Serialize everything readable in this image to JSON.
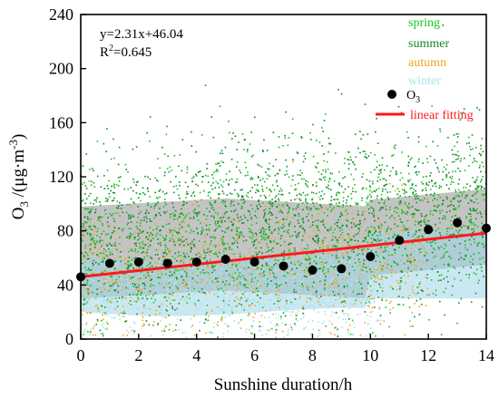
{
  "chart_data": {
    "type": "scatter",
    "title": "",
    "xlabel": "Sunshine duration/h",
    "ylabel_parts": {
      "main": "O",
      "sub": "3",
      "rest": " /(μg·m",
      "sup": "-3",
      "close": ")"
    },
    "xlim": [
      0,
      14
    ],
    "ylim": [
      0,
      240
    ],
    "x_ticks": [
      0,
      2,
      4,
      6,
      8,
      10,
      12,
      14
    ],
    "y_ticks": [
      0,
      40,
      80,
      120,
      160,
      200,
      240
    ],
    "grid": false,
    "legend": "top-right",
    "series": [
      {
        "name": "spring",
        "color": "#19c31f",
        "kind": "scatter"
      },
      {
        "name": "summer",
        "color": "#13882a",
        "kind": "scatter"
      },
      {
        "name": "autumn",
        "color": "#f0a526",
        "kind": "scatter"
      },
      {
        "name": "winter",
        "color": "#a7e2ef",
        "kind": "scatter"
      },
      {
        "name_main": "O",
        "name_sub": "3",
        "color": "#000000",
        "kind": "mean",
        "x": [
          0,
          1,
          2,
          3,
          4,
          5,
          6,
          7,
          8,
          9,
          10,
          11,
          12,
          13,
          14
        ],
        "y": [
          46,
          56,
          57,
          56,
          57,
          59,
          57,
          54,
          51,
          52,
          61,
          73,
          81,
          86,
          82
        ]
      },
      {
        "name": "linear fitting",
        "color": "#ff1a1a",
        "kind": "line",
        "slope": 2.31,
        "intercept": 46.04
      }
    ],
    "annotations": {
      "equation": "y=2.31x+46.04",
      "r2_label": "R",
      "r2_sup": "2",
      "r2_value": "=0.645"
    }
  }
}
